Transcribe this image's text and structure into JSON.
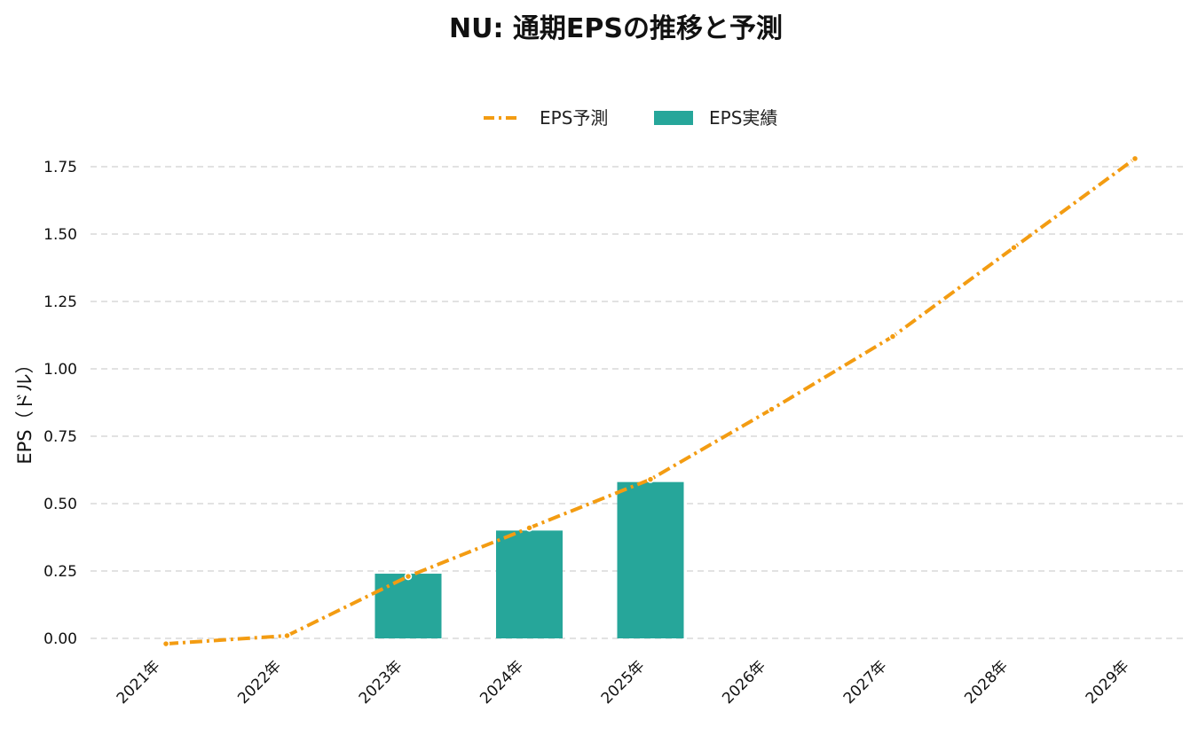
{
  "chart_data": {
    "type": "bar",
    "title": "NU: 通期EPSの推移と予測",
    "xlabel": "",
    "ylabel": "EPS（ドル）",
    "categories": [
      "2021年",
      "2022年",
      "2023年",
      "2024年",
      "2025年",
      "2026年",
      "2027年",
      "2028年",
      "2029年"
    ],
    "ylim": [
      -0.1,
      1.83
    ],
    "yticks": [
      0.0,
      0.25,
      0.5,
      0.75,
      1.0,
      1.25,
      1.5,
      1.75
    ],
    "ytick_labels": [
      "0.00",
      "0.25",
      "0.50",
      "0.75",
      "1.00",
      "1.25",
      "1.50",
      "1.75"
    ],
    "grid": true,
    "legend_position": "top-center",
    "series": [
      {
        "name": "EPS予測",
        "kind": "line",
        "style": "dash-dot",
        "color": "#f39c12",
        "values": [
          -0.02,
          0.01,
          0.23,
          0.41,
          0.59,
          0.85,
          1.12,
          1.45,
          1.78
        ]
      },
      {
        "name": "EPS実績",
        "kind": "bar",
        "color": "#26a69a",
        "values": [
          null,
          null,
          0.24,
          0.4,
          0.58,
          null,
          null,
          null,
          null
        ]
      }
    ]
  }
}
